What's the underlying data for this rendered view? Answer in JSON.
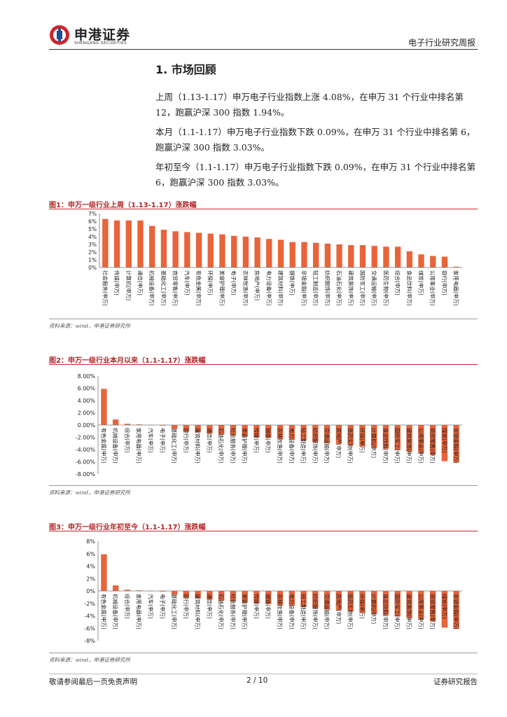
{
  "header": {
    "company_name": "申港证券",
    "company_name_en": "SHENGANG SECURITIES",
    "report_type": "电子行业研究周报"
  },
  "section": {
    "title": "1. 市场回顾",
    "paragraphs": [
      "上周（1.13-1.17）申万电子行业指数上涨 4.08%，在申万 31 个行业中排名第 12，跑赢沪深 300 指数 1.94%。",
      "本月（1.1-1.17）申万电子行业指数下跌 0.09%，在申万 31 个行业中排名第 6，跑赢沪深 300 指数 3.03%。",
      "年初至今（1.1-1.17）申万电子行业指数下跌 0.09%，在申万 31 个行业中排名第 6，跑赢沪深 300 指数 3.03%。"
    ]
  },
  "figures": [
    {
      "title": "图1：申万一级行业上周（1.13-1.17）涨跌幅",
      "source": "资料来源：wind，申港证券研究所"
    },
    {
      "title": "图2：申万一级行业本月以来（1.1-1.17）涨跌幅",
      "source": "资料来源：wind，申港证券研究所"
    },
    {
      "title": "图3：申万一级行业年初至今（1.1-1.17）涨跌幅",
      "source": "资料来源：wind，申港证券研究所"
    }
  ],
  "chart_data": [
    {
      "type": "bar",
      "categories": [
        "社会服务(申万)",
        "传媒(申万)",
        "计算机(申万)",
        "通信(申万)",
        "机械设备(申万)",
        "基础化工(申万)",
        "商贸零售(申万)",
        "汽车(申万)",
        "有色金属(申万)",
        "环保(申万)",
        "美容护理(申万)",
        "电子(申万)",
        "农林牧渔(申万)",
        "房地产(申万)",
        "电力设备(申万)",
        "建筑材料(申万)",
        "钢铁(申万)",
        "非银金融(申万)",
        "轻工制造(申万)",
        "纺织服饰(申万)",
        "石油石化(申万)",
        "建筑装饰(申万)",
        "国防军工(申万)",
        "交通运输(申万)",
        "医药生物(申万)",
        "综合(申万)",
        "食品饮料(申万)",
        "煤炭(申万)",
        "公用事业(申万)",
        "银行(申万)",
        "家用电器(申万)"
      ],
      "values": [
        6.3,
        6.1,
        6.1,
        6.1,
        5.4,
        4.9,
        4.7,
        4.6,
        4.5,
        4.4,
        4.3,
        4.1,
        4.0,
        3.9,
        3.7,
        3.6,
        3.3,
        3.3,
        3.2,
        3.1,
        3.0,
        2.9,
        2.9,
        2.8,
        2.7,
        2.7,
        2.1,
        1.7,
        1.5,
        1.4,
        0.1
      ],
      "ylim": [
        0,
        7
      ],
      "yticks": [
        "7%",
        "6%",
        "5%",
        "4%",
        "3%",
        "2%",
        "1%",
        "0%"
      ],
      "color": "#e8643a"
    },
    {
      "type": "bar",
      "categories": [
        "有色金属(申万)",
        "机械设备(申万)",
        "综合(申万)",
        "家用电器(申万)",
        "汽车(申万)",
        "电子(申万)",
        "基础化工(申万)",
        "银行(申万)",
        "建筑材料(申万)",
        "通信(申万)",
        "石油石化(申万)",
        "社会服务(申万)",
        "美容护理(申万)",
        "传媒(申万)",
        "钢铁(申万)",
        "农林牧渔(申万)",
        "电力设备(申万)",
        "轻工制造(申万)",
        "纺织服饰(申万)",
        "交通运输(申万)",
        "房地产(申万)",
        "医药生物(申万)",
        "环保(申万)",
        "计算机(申万)",
        "食品饮料(申万)",
        "国防军工(申万)",
        "建筑装饰(申万)",
        "公用事业(申万)",
        "商贸零售(申万)",
        "煤炭(申万)",
        "非银金融(申万)"
      ],
      "values": [
        5.9,
        0.9,
        0.2,
        0.1,
        0.0,
        -0.1,
        -0.6,
        -1.1,
        -1.2,
        -1.4,
        -1.6,
        -1.7,
        -1.9,
        -2.0,
        -2.1,
        -2.3,
        -2.4,
        -2.6,
        -2.8,
        -3.0,
        -3.1,
        -3.3,
        -3.5,
        -3.7,
        -3.9,
        -4.1,
        -4.4,
        -4.6,
        -4.9,
        -5.9,
        -6.1
      ],
      "ylim": [
        -8,
        8
      ],
      "yticks": [
        "8.00%",
        "6.00%",
        "4.00%",
        "2.00%",
        "0.00%",
        "-2.00%",
        "-4.00%",
        "-6.00%",
        "-8.00%"
      ],
      "color": "#e8643a"
    },
    {
      "type": "bar",
      "categories": [
        "有色金属(申万)",
        "机械设备(申万)",
        "综合(申万)",
        "家用电器(申万)",
        "汽车(申万)",
        "电子(申万)",
        "基础化工(申万)",
        "银行(申万)",
        "建筑材料(申万)",
        "通信(申万)",
        "石油石化(申万)",
        "社会服务(申万)",
        "美容护理(申万)",
        "传媒(申万)",
        "钢铁(申万)",
        "农林牧渔(申万)",
        "电力设备(申万)",
        "轻工制造(申万)",
        "纺织服饰(申万)",
        "交通运输(申万)",
        "房地产(申万)",
        "医药生物(申万)",
        "环保(申万)",
        "计算机(申万)",
        "食品饮料(申万)",
        "国防军工(申万)",
        "建筑装饰(申万)",
        "公用事业(申万)",
        "商贸零售(申万)",
        "煤炭(申万)",
        "非银金融(申万)"
      ],
      "values": [
        5.9,
        0.9,
        0.2,
        0.1,
        0.0,
        -0.1,
        -0.6,
        -1.1,
        -1.2,
        -1.4,
        -1.6,
        -1.7,
        -1.9,
        -2.0,
        -2.1,
        -2.3,
        -2.4,
        -2.6,
        -2.8,
        -3.0,
        -3.1,
        -3.3,
        -3.5,
        -3.7,
        -3.9,
        -4.1,
        -4.4,
        -4.6,
        -4.9,
        -5.9,
        -6.1
      ],
      "ylim": [
        -8,
        8
      ],
      "yticks": [
        "8%",
        "6%",
        "4%",
        "2%",
        "0%",
        "-2%",
        "-4%",
        "-6%",
        "-8%"
      ],
      "color": "#e8643a"
    }
  ],
  "footer": {
    "disclaimer": "敬请参阅最后一页免责声明",
    "page": "2 / 10",
    "label": "证券研究报告"
  }
}
